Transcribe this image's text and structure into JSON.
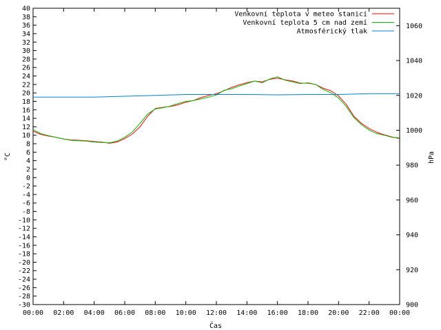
{
  "chart_data": {
    "type": "line",
    "title": "",
    "xlabel": "Čas",
    "ylabel": "°C",
    "y2label": "hPa",
    "x_ticks": [
      "00:00",
      "02:00",
      "04:00",
      "06:00",
      "08:00",
      "10:00",
      "12:00",
      "14:00",
      "16:00",
      "18:00",
      "20:00",
      "22:00",
      "00:00"
    ],
    "xlim_hours": [
      0,
      24
    ],
    "ylim": [
      -30,
      40
    ],
    "y_ticks": [
      40,
      38,
      36,
      34,
      32,
      30,
      28,
      26,
      24,
      22,
      20,
      18,
      16,
      14,
      12,
      10,
      8,
      6,
      4,
      2,
      0,
      -2,
      -4,
      -6,
      -8,
      -10,
      -12,
      -14,
      -16,
      -18,
      -20,
      -22,
      -24,
      -26,
      -28,
      -30
    ],
    "y2lim": [
      900,
      1070
    ],
    "y2_ticks": [
      1060,
      1040,
      1020,
      1000,
      980,
      960,
      940,
      920,
      900
    ],
    "grid": false,
    "legend_position": "top-right",
    "series": [
      {
        "name": "Venkovní teplota v meteo stanici",
        "axis": "left",
        "color": "#ff0000",
        "x": [
          0,
          0.5,
          1,
          1.5,
          2,
          2.5,
          3,
          3.5,
          4,
          4.5,
          5,
          5.5,
          6,
          6.5,
          7,
          7.5,
          8,
          8.5,
          9,
          9.5,
          10,
          10.5,
          11,
          11.5,
          12,
          12.5,
          13,
          13.5,
          14,
          14.5,
          15,
          15.5,
          16,
          16.5,
          17,
          17.5,
          18,
          18.5,
          19,
          19.5,
          20,
          20.5,
          21,
          21.5,
          22,
          22.5,
          23,
          23.5,
          24
        ],
        "values": [
          11,
          10.2,
          9.8,
          9.5,
          9.1,
          8.9,
          8.8,
          8.7,
          8.5,
          8.4,
          8.1,
          8.4,
          9.2,
          10.3,
          12,
          14.5,
          16.3,
          16.6,
          16.8,
          17.2,
          17.8,
          18.2,
          18.9,
          19.4,
          19.8,
          20.5,
          21.3,
          21.9,
          22.4,
          22.8,
          22.6,
          23.2,
          23.5,
          23.1,
          22.8,
          22.3,
          22.3,
          22.0,
          21.1,
          20.5,
          19.3,
          17.3,
          14.5,
          12.8,
          11.6,
          10.7,
          10.1,
          9.6,
          9.2
        ]
      },
      {
        "name": "Venkovní teplota 5 cm nad zemí",
        "axis": "left",
        "color": "#00bb00",
        "x": [
          0,
          0.5,
          1,
          1.5,
          2,
          2.5,
          3,
          3.5,
          4,
          4.5,
          5,
          5.5,
          6,
          6.5,
          7,
          7.5,
          8,
          8.5,
          9,
          9.5,
          10,
          10.5,
          11,
          11.5,
          12,
          12.5,
          13,
          13.5,
          14,
          14.5,
          15,
          15.5,
          16,
          16.5,
          17,
          17.5,
          18,
          18.5,
          19,
          19.5,
          20,
          20.5,
          21,
          21.5,
          22,
          22.5,
          23,
          23.5,
          24
        ],
        "values": [
          11.3,
          10.4,
          9.9,
          9.5,
          9.1,
          8.8,
          8.7,
          8.6,
          8.4,
          8.3,
          8.2,
          8.6,
          9.5,
          10.8,
          12.8,
          15.0,
          16.2,
          16.5,
          16.9,
          17.5,
          18.0,
          18.2,
          18.6,
          19.0,
          19.5,
          20.6,
          21.0,
          21.6,
          22.2,
          22.8,
          22.4,
          23.3,
          23.8,
          23.0,
          22.6,
          22.2,
          22.4,
          22.0,
          20.8,
          20.0,
          18.8,
          16.8,
          14.2,
          12.5,
          11.2,
          10.4,
          10.0,
          9.5,
          9.4
        ]
      },
      {
        "name": "Atmosférický tlak",
        "axis": "right",
        "color": "#0080cc",
        "x": [
          0,
          2,
          4,
          6,
          8,
          10,
          12,
          14,
          16,
          18,
          20,
          22,
          24
        ],
        "values": [
          1019,
          1019,
          1019,
          1019.5,
          1020,
          1020.5,
          1020.5,
          1020.5,
          1020.3,
          1020.5,
          1020.5,
          1021,
          1021
        ]
      }
    ]
  }
}
